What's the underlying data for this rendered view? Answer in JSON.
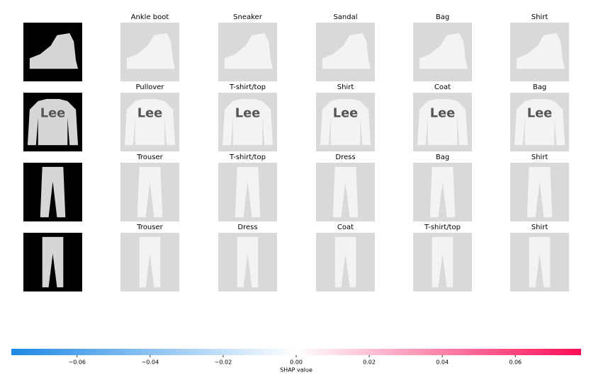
{
  "chart_data": {
    "type": "image",
    "rows": [
      {
        "labels": [
          "Ankle boot",
          "Sneaker",
          "Sandal",
          "Bag",
          "Shirt"
        ]
      },
      {
        "labels": [
          "Pullover",
          "T-shirt/top",
          "Shirt",
          "Coat",
          "Bag"
        ]
      },
      {
        "labels": [
          "Trouser",
          "T-shirt/top",
          "Dress",
          "Bag",
          "Shirt"
        ]
      },
      {
        "labels": [
          "Trouser",
          "Dress",
          "Coat",
          "T-shirt/top",
          "Shirt"
        ]
      }
    ],
    "colorbar": {
      "label": "SHAP value",
      "lim": [
        -0.078,
        0.078
      ],
      "ticks": [
        {
          "value": -0.06,
          "label": "−0.06"
        },
        {
          "value": -0.04,
          "label": "−0.04"
        },
        {
          "value": -0.02,
          "label": "−0.02"
        },
        {
          "value": 0,
          "label": "0.00"
        },
        0.02,
        0.04,
        0.06
      ],
      "colormap": [
        "#1e88e5",
        "#ffffff",
        "#ff0d57"
      ]
    }
  }
}
